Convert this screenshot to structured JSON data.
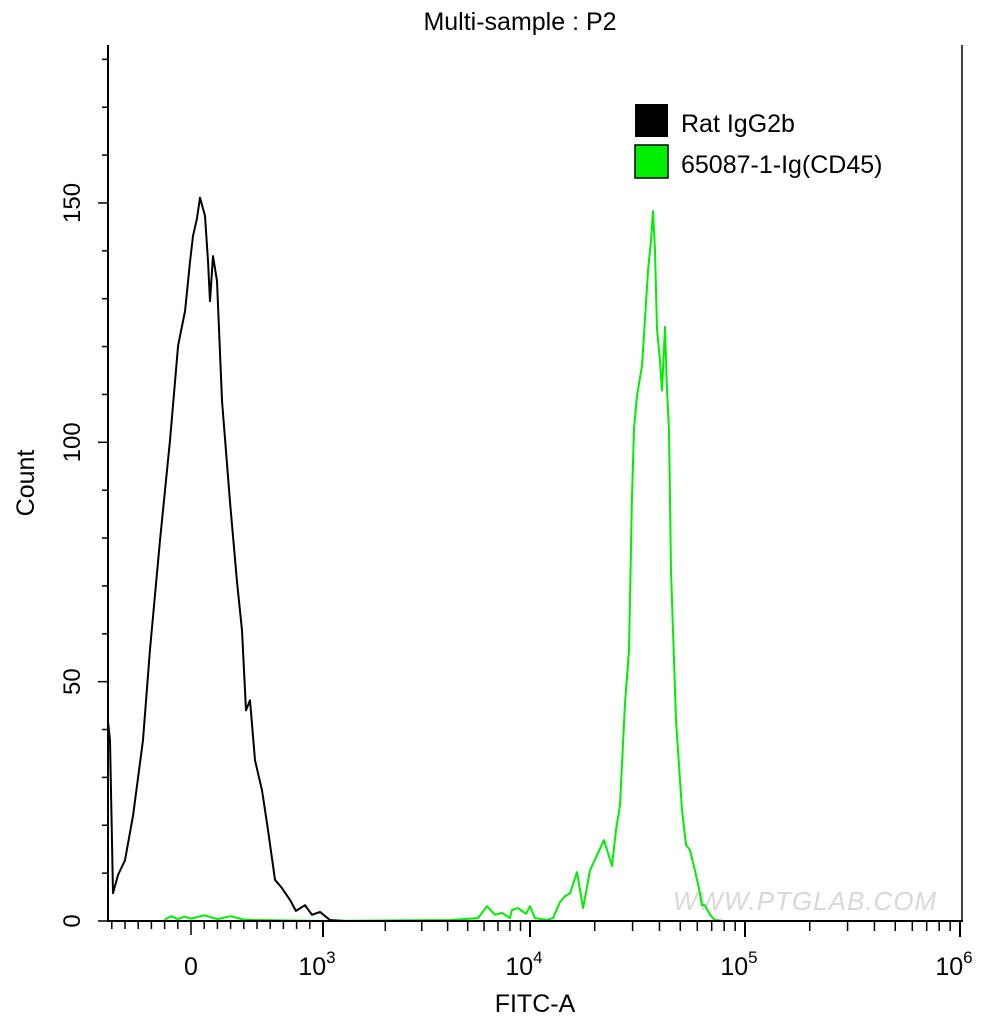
{
  "chart_data": {
    "type": "line",
    "title": "Multi-sample : P2",
    "xlabel": "FITC-A",
    "ylabel": "Count",
    "x_scale": "biexponential",
    "xlim": [
      -630,
      1000000
    ],
    "ylim": [
      0,
      183
    ],
    "x_ticks": [
      {
        "value": 0,
        "base": "0",
        "exp": ""
      },
      {
        "value": 1000,
        "base": "10",
        "exp": "3"
      },
      {
        "value": 10000,
        "base": "10",
        "exp": "4"
      },
      {
        "value": 100000,
        "base": "10",
        "exp": "5"
      },
      {
        "value": 1000000,
        "base": "10",
        "exp": "6"
      }
    ],
    "y_ticks": [
      "0",
      "50",
      "100",
      "150"
    ],
    "grid": false,
    "legend_position": "top-right",
    "watermark": "WWW.PTGLAB.COM",
    "series": [
      {
        "name": "Rat IgG2b",
        "color": "#000000",
        "x": [
          -630,
          -614,
          -591,
          -553,
          -500,
          -439,
          -364,
          -311,
          -235,
          -159,
          -98,
          -45,
          -8,
          15,
          45,
          68,
          106,
          129,
          144,
          167,
          197,
          235,
          295,
          348,
          386,
          417,
          447,
          485,
          538,
          583,
          636,
          689,
          750,
          795,
          864,
          917,
          977,
          1080,
          1300
        ],
        "y": [
          42,
          37.8,
          5.8,
          9.6,
          12.7,
          22.1,
          37.8,
          56.5,
          79.5,
          100.4,
          120.2,
          127.5,
          137.5,
          143.1,
          146.7,
          151.1,
          147.3,
          137.9,
          129.5,
          138.9,
          133.7,
          108.7,
          87.8,
          71.1,
          60.7,
          44.0,
          46.1,
          33.6,
          27.3,
          19.0,
          8.6,
          6.9,
          4.4,
          2.1,
          3.3,
          1.3,
          1.9,
          0.2,
          0
        ]
      },
      {
        "name": "65087-1-Ig(CD45)",
        "color": "#00ee00",
        "x": [
          -200,
          -150,
          -100,
          -50,
          0,
          100,
          200,
          300,
          400,
          500,
          1000,
          4110,
          5610,
          6200,
          6770,
          7330,
          8000,
          8190,
          8750,
          9570,
          10000,
          10550,
          12000,
          12790,
          13800,
          14560,
          15360,
          16550,
          17650,
          19020,
          22090,
          24060,
          25120,
          26230,
          27670,
          28860,
          29790,
          30470,
          31470,
          33200,
          34280,
          35400,
          36560,
          37350,
          38140,
          38960,
          40240,
          41110,
          42460,
          43370,
          44330,
          45290,
          47770,
          50930,
          53150,
          55470,
          58500,
          61060,
          63060,
          65130,
          68710,
          72480,
          80000
        ],
        "y": [
          0.3,
          1.0,
          0.4,
          0.9,
          0.5,
          1.2,
          0.4,
          1.0,
          0.3,
          0.2,
          0,
          0.2,
          0.6,
          3.1,
          1.3,
          1.7,
          0.6,
          2.3,
          2.7,
          1.5,
          3.1,
          0.6,
          0.2,
          0.6,
          4.0,
          5.2,
          5.8,
          10.2,
          2.7,
          10.6,
          16.9,
          11.5,
          19.0,
          24.2,
          45.5,
          56.5,
          87.8,
          102.9,
          109.7,
          116.0,
          125.8,
          135.8,
          142.1,
          148.3,
          140.0,
          123.7,
          117.0,
          110.8,
          124.1,
          110.8,
          102.4,
          73.2,
          41.9,
          23.2,
          15.9,
          14.8,
          10.6,
          6.9,
          3.3,
          3.3,
          1.3,
          0.2,
          0
        ]
      }
    ]
  }
}
